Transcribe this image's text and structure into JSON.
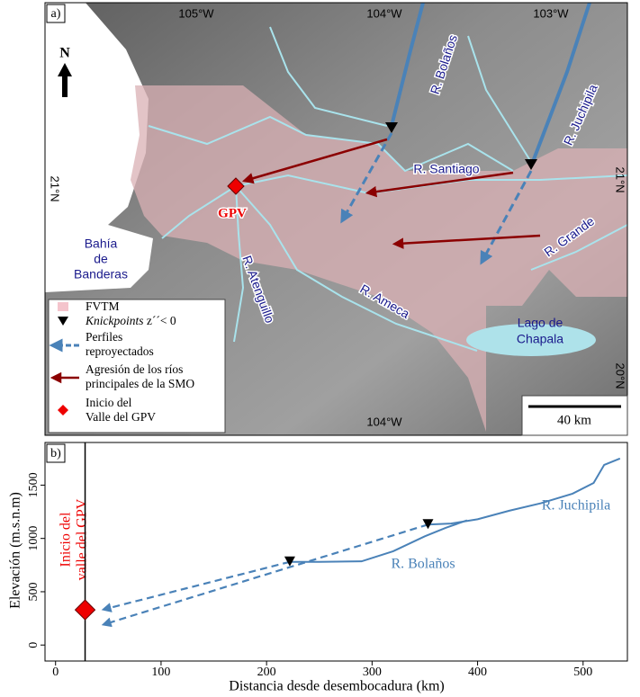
{
  "map": {
    "panel_label": "a)",
    "north": "N",
    "lon_labels": [
      "105°W",
      "104°W",
      "103°W",
      "104°W"
    ],
    "lat_labels": [
      "21°N",
      "21°N",
      "20°N"
    ],
    "rivers": [
      "R. Bolaños",
      "R. Juchipila",
      "R. Santiago",
      "R. Grande",
      "R. Atenguillo",
      "R. Ameca"
    ],
    "places": [
      {
        "lines": [
          "Bahía",
          "de",
          "Banderas"
        ]
      },
      {
        "lines": [
          "Lago de",
          "Chapala"
        ]
      }
    ],
    "gpv": "GPV",
    "legend": [
      {
        "lines": [
          "FVTM"
        ]
      },
      {
        "term": "Knickpoints",
        "lines": [
          "z´´< 0"
        ]
      },
      {
        "lines": [
          "Perfiles",
          "reproyectados"
        ]
      },
      {
        "lines": [
          "Agresión de los ríos",
          "principales de la SMO"
        ]
      },
      {
        "lines": [
          "Inicio del",
          "Valle del GPV"
        ]
      }
    ],
    "scale": "40 km"
  },
  "chart_data": {
    "type": "line",
    "panel_label": "b)",
    "xlabel": "Distancia desde desembocadura (km)",
    "ylabel": "Elevación (m.s.n.m)",
    "annotation": [
      "Inicio del",
      "valle del GPV"
    ],
    "xlim": [
      -10,
      542
    ],
    "ylim": [
      -150,
      1900
    ],
    "xticks": [
      0,
      100,
      200,
      300,
      400,
      500
    ],
    "yticks": [
      0,
      500,
      1000,
      1500
    ],
    "series": [
      {
        "name": "R. Bolaños",
        "color": "#4a82b8",
        "x": [
          222,
          250,
          290,
          320,
          350,
          370,
          390
        ],
        "values": [
          780,
          780,
          785,
          880,
          1020,
          1100,
          1170
        ]
      },
      {
        "name": "R. Juchipila",
        "color": "#4a82b8",
        "x": [
          353,
          375,
          400,
          430,
          460,
          490,
          510,
          520,
          535
        ],
        "values": [
          1130,
          1140,
          1180,
          1260,
          1330,
          1420,
          1520,
          1690,
          1750
        ]
      }
    ],
    "knickpoints": {
      "x": [
        222,
        353
      ],
      "values": [
        780,
        1130
      ]
    },
    "reprojected": [
      {
        "x": [
          222,
          48
        ],
        "values": [
          780,
          340
        ]
      },
      {
        "x": [
          353,
          48
        ],
        "values": [
          1130,
          200
        ]
      }
    ],
    "gpv_start": {
      "x": 28,
      "value": 330
    }
  }
}
